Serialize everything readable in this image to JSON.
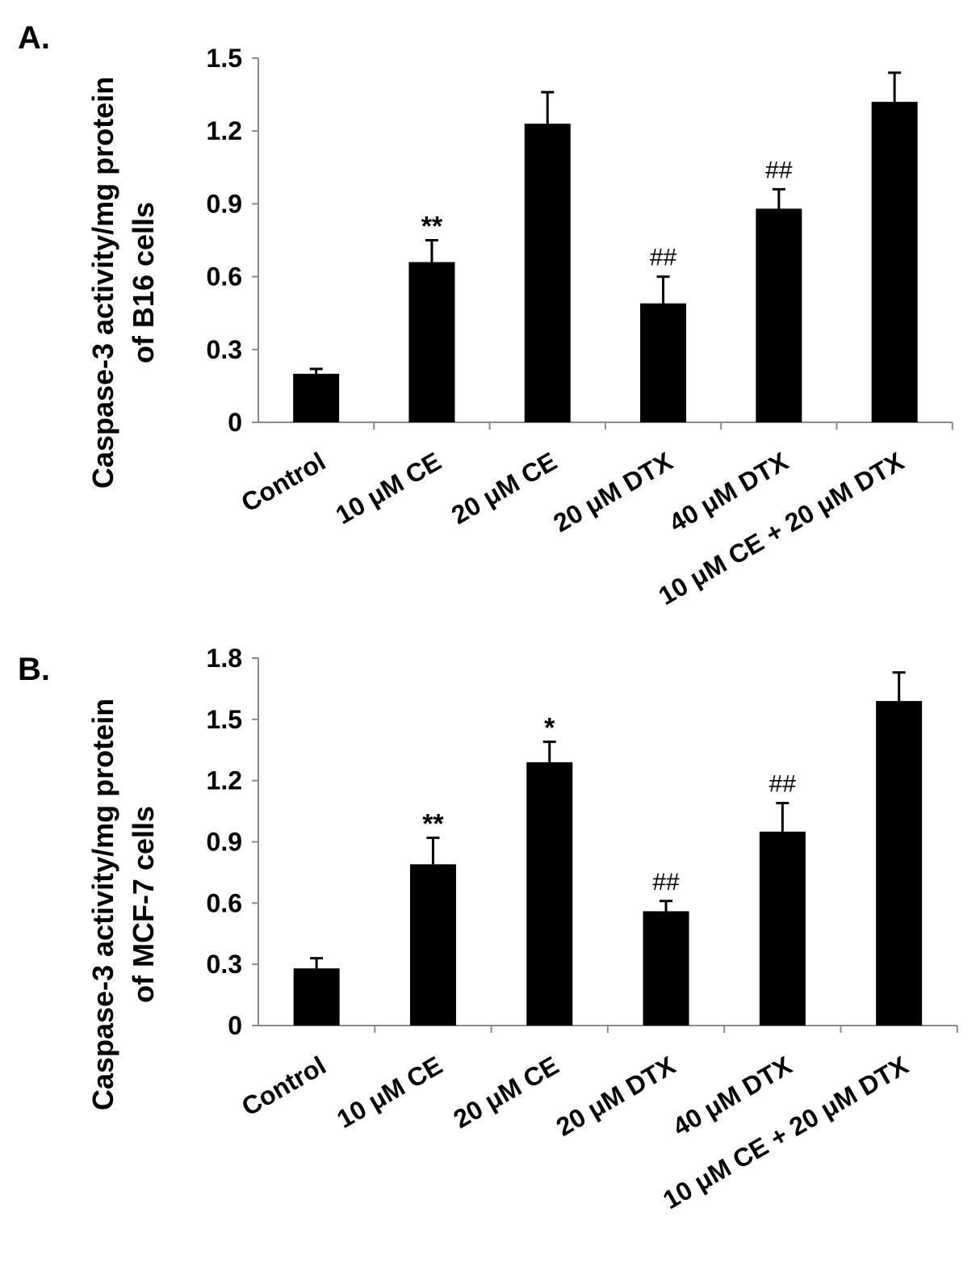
{
  "figure": {
    "panels": [
      "A.",
      "B."
    ]
  },
  "chart_data": [
    {
      "type": "bar",
      "panel": "A.",
      "title": "",
      "xlabel": "",
      "ylabel_lines": [
        "Caspase-3 activity/mg protein",
        "of B16 cells"
      ],
      "ylim": [
        0,
        1.5
      ],
      "yticks": [
        0,
        0.3,
        0.6,
        0.9,
        1.2,
        1.5
      ],
      "ytick_labels": [
        "0",
        "0.3",
        "0.6",
        "0.9",
        "1.2",
        "1.5"
      ],
      "categories": [
        "Control",
        "10 μM CE",
        "20 μM CE",
        "20 μM DTX",
        "40 μM DTX",
        "10 μM CE + 20 μM DTX"
      ],
      "values": [
        0.2,
        0.66,
        1.23,
        0.49,
        0.88,
        1.32
      ],
      "errors": [
        0.02,
        0.09,
        0.13,
        0.11,
        0.08,
        0.12
      ],
      "annotations": [
        "",
        "**",
        "",
        "##",
        "##",
        ""
      ],
      "bar_color": "#000000"
    },
    {
      "type": "bar",
      "panel": "B.",
      "title": "",
      "xlabel": "",
      "ylabel_lines": [
        "Caspase-3 activity/mg protein",
        "of MCF-7 cells"
      ],
      "ylim": [
        0,
        1.8
      ],
      "yticks": [
        0,
        0.3,
        0.6,
        0.9,
        1.2,
        1.5,
        1.8
      ],
      "ytick_labels": [
        "0",
        "0.3",
        "0.6",
        "0.9",
        "1.2",
        "1.5",
        "1.8"
      ],
      "categories": [
        "Control",
        "10 μM CE",
        "20 μM CE",
        "20 μM DTX",
        "40 μM DTX",
        "10 μM CE + 20 μM DTX"
      ],
      "values": [
        0.28,
        0.79,
        1.29,
        0.56,
        0.95,
        1.59
      ],
      "errors": [
        0.05,
        0.13,
        0.1,
        0.05,
        0.14,
        0.14
      ],
      "annotations": [
        "",
        "**",
        "*",
        "##",
        "##",
        ""
      ],
      "bar_color": "#000000"
    }
  ]
}
